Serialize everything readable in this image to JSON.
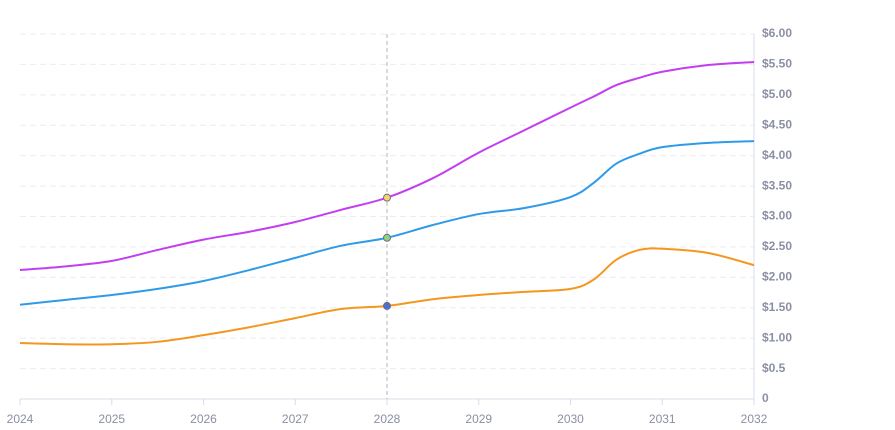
{
  "chart_data": {
    "type": "line",
    "x": [
      2024,
      2024.5,
      2025,
      2025.5,
      2026,
      2026.5,
      2027,
      2027.5,
      2028,
      2028.5,
      2029,
      2029.5,
      2030,
      2030.25,
      2030.5,
      2030.75,
      2031,
      2031.5,
      2032
    ],
    "series": [
      {
        "color": "#c23ef0",
        "values": [
          2.12,
          2.18,
          2.27,
          2.45,
          2.62,
          2.75,
          2.91,
          3.11,
          3.31,
          3.63,
          4.05,
          4.42,
          4.79,
          4.97,
          5.16,
          5.28,
          5.38,
          5.49,
          5.54
        ]
      },
      {
        "color": "#2f9be8",
        "values": [
          1.55,
          1.63,
          1.71,
          1.81,
          1.94,
          2.12,
          2.32,
          2.52,
          2.65,
          2.86,
          3.04,
          3.14,
          3.32,
          3.55,
          3.87,
          4.03,
          4.14,
          4.21,
          4.24
        ]
      },
      {
        "color": "#f5961e",
        "values": [
          0.92,
          0.9,
          0.9,
          0.94,
          1.05,
          1.18,
          1.33,
          1.48,
          1.53,
          1.64,
          1.71,
          1.76,
          1.81,
          1.96,
          2.29,
          2.45,
          2.47,
          2.4,
          2.2
        ]
      }
    ],
    "xlim": [
      2024,
      2032
    ],
    "xticks": [
      2024,
      2025,
      2026,
      2027,
      2028,
      2029,
      2030,
      2031,
      2032
    ],
    "ylim": [
      0,
      6
    ],
    "yticks": [
      0,
      {
        "value": 0.5,
        "label": "$0.5"
      },
      {
        "value": 1,
        "label": "$1.00"
      },
      {
        "value": 1.5,
        "label": "$1.50"
      },
      {
        "value": 2,
        "label": "$2.00"
      },
      {
        "value": 2.5,
        "label": "$2.50"
      },
      {
        "value": 3,
        "label": "$3.00"
      },
      {
        "value": 3.5,
        "label": "$3.50"
      },
      {
        "value": 4,
        "label": "$4.00"
      },
      {
        "value": 4.5,
        "label": "$4.50"
      },
      {
        "value": 5,
        "label": "$5.00"
      },
      {
        "value": 5.5,
        "label": "$5.50"
      },
      {
        "value": 6,
        "label": "$6.00"
      }
    ],
    "grid": true,
    "crosshair_x": 2028,
    "marker_colors": [
      "#f7d36b",
      "#8fd37a",
      "#4a6fd1"
    ]
  }
}
